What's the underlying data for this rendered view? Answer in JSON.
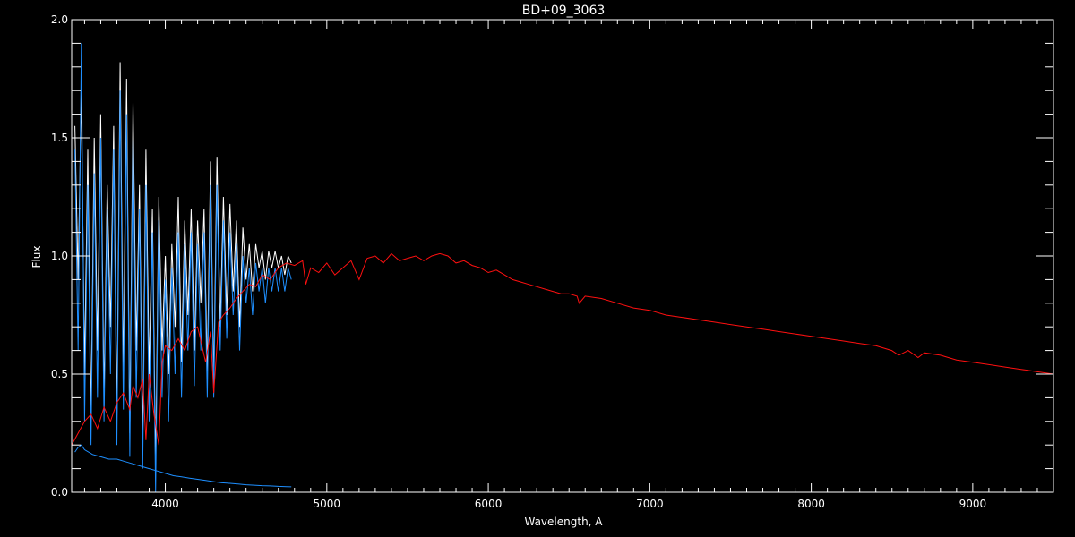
{
  "chart_data": {
    "type": "line",
    "title": "BD+09_3063",
    "xlabel": "Wavelength, A",
    "ylabel": "Flux",
    "xlim": [
      3420,
      9500
    ],
    "ylim": [
      0,
      2.0
    ],
    "x_ticks": [
      4000,
      5000,
      6000,
      7000,
      8000,
      9000
    ],
    "x_tick_labels": [
      "4000",
      "5000",
      "6000",
      "7000",
      "8000",
      "9000"
    ],
    "y_ticks": [
      0.0,
      0.5,
      1.0,
      1.5,
      2.0
    ],
    "y_tick_labels": [
      "0.0",
      "0.5",
      "1.0",
      "1.5",
      "2.0"
    ],
    "grid": false,
    "background": "#000000",
    "foreground": "#ffffff",
    "series": [
      {
        "color": "#ffffff",
        "x": [
          3440,
          3460,
          3480,
          3500,
          3520,
          3540,
          3560,
          3580,
          3600,
          3620,
          3640,
          3660,
          3680,
          3700,
          3720,
          3740,
          3760,
          3780,
          3800,
          3820,
          3840,
          3860,
          3880,
          3900,
          3920,
          3940,
          3960,
          3980,
          4000,
          4020,
          4040,
          4060,
          4080,
          4100,
          4120,
          4140,
          4160,
          4180,
          4200,
          4220,
          4240,
          4260,
          4280,
          4300,
          4320,
          4340,
          4360,
          4380,
          4400,
          4420,
          4440,
          4460,
          4480,
          4500,
          4520,
          4540,
          4560,
          4580,
          4600,
          4620,
          4640,
          4660,
          4680,
          4700,
          4720,
          4740,
          4760,
          4780
        ],
        "y": [
          1.55,
          0.9,
          1.7,
          0.5,
          1.45,
          0.3,
          1.5,
          0.6,
          1.6,
          0.4,
          1.3,
          0.7,
          1.55,
          0.3,
          1.82,
          0.5,
          1.75,
          0.25,
          1.65,
          0.6,
          1.3,
          0.2,
          1.45,
          0.5,
          1.2,
          0.1,
          1.25,
          0.6,
          1.0,
          0.5,
          1.05,
          0.7,
          1.25,
          0.55,
          1.15,
          0.75,
          1.2,
          0.6,
          1.15,
          0.8,
          1.2,
          0.5,
          1.4,
          0.45,
          1.42,
          0.7,
          1.25,
          0.75,
          1.22,
          0.85,
          1.15,
          0.7,
          1.12,
          0.9,
          1.05,
          0.85,
          1.05,
          0.95,
          1.02,
          0.9,
          1.02,
          0.95,
          1.02,
          0.95,
          1.0,
          0.92,
          1.0,
          0.97
        ]
      },
      {
        "color": "#1e8fff",
        "x": [
          3440,
          3460,
          3480,
          3500,
          3520,
          3540,
          3560,
          3580,
          3600,
          3620,
          3640,
          3660,
          3680,
          3700,
          3720,
          3740,
          3760,
          3780,
          3800,
          3820,
          3840,
          3860,
          3880,
          3900,
          3920,
          3940,
          3960,
          3980,
          4000,
          4020,
          4040,
          4060,
          4080,
          4100,
          4120,
          4140,
          4160,
          4180,
          4200,
          4220,
          4240,
          4260,
          4280,
          4300,
          4320,
          4340,
          4360,
          4380,
          4400,
          4420,
          4440,
          4460,
          4480,
          4500,
          4520,
          4540,
          4560,
          4580,
          4600,
          4620,
          4640,
          4660,
          4680,
          4700,
          4720,
          4740,
          4760,
          4780
        ],
        "y": [
          1.45,
          0.6,
          1.9,
          0.3,
          1.3,
          0.2,
          1.35,
          0.4,
          1.5,
          0.3,
          1.2,
          0.5,
          1.45,
          0.2,
          1.7,
          0.35,
          1.6,
          0.15,
          1.5,
          0.4,
          1.2,
          0.1,
          1.3,
          0.3,
          1.1,
          0.0,
          1.15,
          0.4,
          0.9,
          0.3,
          0.95,
          0.5,
          1.1,
          0.4,
          1.05,
          0.6,
          1.1,
          0.45,
          1.05,
          0.6,
          1.1,
          0.4,
          1.3,
          0.4,
          1.3,
          0.6,
          1.15,
          0.65,
          1.1,
          0.75,
          1.05,
          0.6,
          1.0,
          0.8,
          0.95,
          0.75,
          0.97,
          0.85,
          0.95,
          0.8,
          0.95,
          0.85,
          0.95,
          0.85,
          0.95,
          0.85,
          0.95,
          0.9
        ]
      },
      {
        "color": "#ff1010",
        "x": [
          3420,
          3460,
          3500,
          3540,
          3580,
          3620,
          3660,
          3700,
          3740,
          3780,
          3800,
          3830,
          3860,
          3880,
          3900,
          3930,
          3960,
          3980,
          4000,
          4040,
          4080,
          4120,
          4160,
          4200,
          4250,
          4280,
          4300,
          4330,
          4360,
          4400,
          4440,
          4480,
          4520,
          4560,
          4600,
          4650,
          4700,
          4750,
          4800,
          4850,
          4870,
          4900,
          4950,
          5000,
          5050,
          5100,
          5150,
          5200,
          5250,
          5300,
          5350,
          5400,
          5450,
          5500,
          5550,
          5600,
          5650,
          5700,
          5750,
          5800,
          5850,
          5900,
          5950,
          6000,
          6050,
          6100,
          6150,
          6200,
          6250,
          6300,
          6350,
          6400,
          6450,
          6500,
          6550,
          6563,
          6600,
          6700,
          6800,
          6900,
          7000,
          7100,
          7200,
          7300,
          7400,
          7500,
          7600,
          7700,
          7800,
          7900,
          8000,
          8100,
          8200,
          8300,
          8400,
          8498,
          8542,
          8600,
          8662,
          8700,
          8800,
          8900,
          9000,
          9100,
          9200,
          9300,
          9400,
          9500
        ],
        "y": [
          0.2,
          0.25,
          0.3,
          0.33,
          0.27,
          0.36,
          0.3,
          0.38,
          0.42,
          0.35,
          0.45,
          0.4,
          0.48,
          0.22,
          0.5,
          0.33,
          0.2,
          0.55,
          0.62,
          0.6,
          0.65,
          0.6,
          0.68,
          0.7,
          0.55,
          0.68,
          0.42,
          0.72,
          0.75,
          0.78,
          0.82,
          0.85,
          0.88,
          0.87,
          0.92,
          0.9,
          0.95,
          0.97,
          0.96,
          0.98,
          0.88,
          0.95,
          0.93,
          0.97,
          0.92,
          0.95,
          0.98,
          0.9,
          0.99,
          1.0,
          0.97,
          1.01,
          0.98,
          0.99,
          1.0,
          0.98,
          1.0,
          1.01,
          1.0,
          0.97,
          0.98,
          0.96,
          0.95,
          0.93,
          0.94,
          0.92,
          0.9,
          0.89,
          0.88,
          0.87,
          0.86,
          0.85,
          0.84,
          0.84,
          0.83,
          0.8,
          0.83,
          0.82,
          0.8,
          0.78,
          0.77,
          0.75,
          0.74,
          0.73,
          0.72,
          0.71,
          0.7,
          0.69,
          0.68,
          0.67,
          0.66,
          0.65,
          0.64,
          0.63,
          0.62,
          0.6,
          0.58,
          0.6,
          0.57,
          0.59,
          0.58,
          0.56,
          0.55,
          0.54,
          0.53,
          0.52,
          0.51,
          0.5
        ]
      },
      {
        "color": "#1e8fff",
        "x": [
          3440,
          3460,
          3480,
          3500,
          3550,
          3600,
          3650,
          3700,
          3750,
          3800,
          3850,
          3900,
          3950,
          4000,
          4050,
          4100,
          4150,
          4200,
          4250,
          4300,
          4350,
          4400,
          4450,
          4500,
          4550,
          4600,
          4650,
          4700,
          4750,
          4780
        ],
        "y": [
          0.17,
          0.19,
          0.2,
          0.18,
          0.16,
          0.15,
          0.14,
          0.14,
          0.13,
          0.12,
          0.11,
          0.1,
          0.09,
          0.08,
          0.07,
          0.065,
          0.06,
          0.055,
          0.05,
          0.045,
          0.04,
          0.038,
          0.035,
          0.032,
          0.03,
          0.028,
          0.027,
          0.025,
          0.024,
          0.023
        ]
      }
    ]
  }
}
